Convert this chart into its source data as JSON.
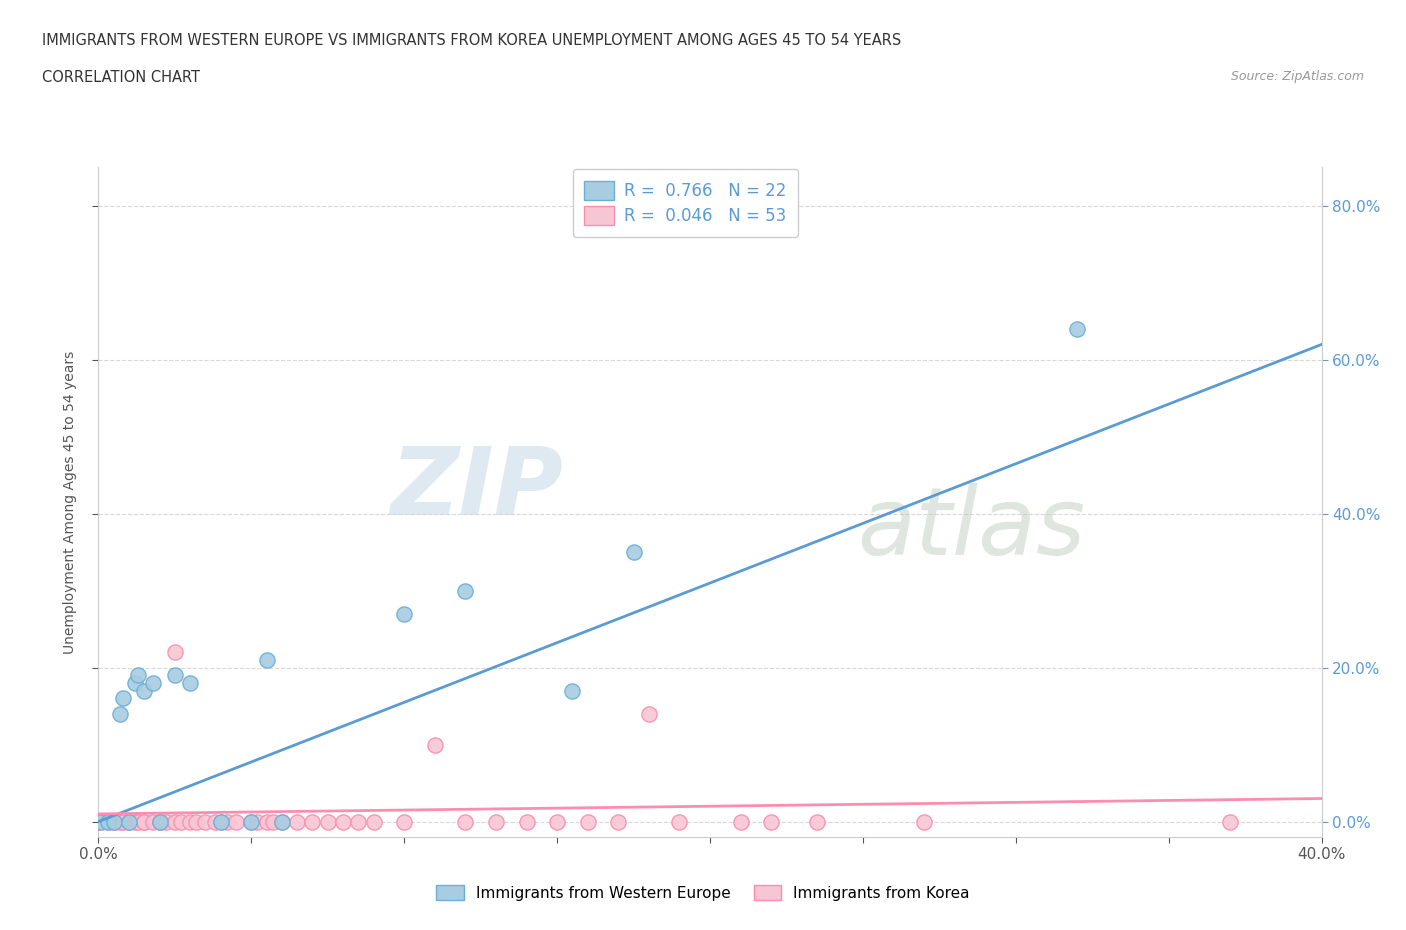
{
  "title_line1": "IMMIGRANTS FROM WESTERN EUROPE VS IMMIGRANTS FROM KOREA UNEMPLOYMENT AMONG AGES 45 TO 54 YEARS",
  "title_line2": "CORRELATION CHART",
  "source_text": "Source: ZipAtlas.com",
  "ylabel": "Unemployment Among Ages 45 to 54 years",
  "xlim": [
    0.0,
    0.4
  ],
  "ylim": [
    -0.02,
    0.85
  ],
  "x_ticks": [
    0.0,
    0.05,
    0.1,
    0.15,
    0.2,
    0.25,
    0.3,
    0.35,
    0.4
  ],
  "x_tick_labels": [
    "0.0%",
    "",
    "",
    "",
    "",
    "",
    "",
    "",
    "40.0%"
  ],
  "y_ticks": [
    0.0,
    0.2,
    0.4,
    0.6,
    0.8
  ],
  "y_tick_labels_right": [
    "0.0%",
    "20.0%",
    "40.0%",
    "60.0%",
    "80.0%"
  ],
  "watermark_zip": "ZIP",
  "watermark_atlas": "atlas",
  "legend_r1": "R =  0.766",
  "legend_n1": "N = 22",
  "legend_r2": "R =  0.046",
  "legend_n2": "N = 53",
  "blue_color": "#a8cce0",
  "blue_edge_color": "#6baed6",
  "pink_color": "#f7c6d4",
  "pink_edge_color": "#fb8db0",
  "blue_line_color": "#5b9bd5",
  "pink_line_color": "#e8789c",
  "blue_scatter_x": [
    0.001,
    0.003,
    0.005,
    0.007,
    0.008,
    0.01,
    0.012,
    0.013,
    0.015,
    0.018,
    0.02,
    0.025,
    0.03,
    0.04,
    0.05,
    0.055,
    0.06,
    0.1,
    0.12,
    0.155,
    0.175,
    0.32
  ],
  "blue_scatter_y": [
    0.0,
    0.0,
    0.0,
    0.14,
    0.16,
    0.0,
    0.18,
    0.19,
    0.17,
    0.18,
    0.0,
    0.19,
    0.18,
    0.0,
    0.0,
    0.21,
    0.0,
    0.27,
    0.3,
    0.17,
    0.35,
    0.64
  ],
  "pink_scatter_x": [
    0.0,
    0.0,
    0.003,
    0.005,
    0.005,
    0.007,
    0.008,
    0.01,
    0.01,
    0.012,
    0.013,
    0.015,
    0.015,
    0.018,
    0.02,
    0.02,
    0.022,
    0.025,
    0.025,
    0.027,
    0.03,
    0.032,
    0.035,
    0.038,
    0.04,
    0.042,
    0.045,
    0.05,
    0.052,
    0.055,
    0.057,
    0.06,
    0.065,
    0.07,
    0.075,
    0.08,
    0.085,
    0.09,
    0.1,
    0.11,
    0.12,
    0.13,
    0.14,
    0.15,
    0.16,
    0.17,
    0.18,
    0.19,
    0.21,
    0.22,
    0.235,
    0.27,
    0.37
  ],
  "pink_scatter_y": [
    0.0,
    0.0,
    0.0,
    0.0,
    0.0,
    0.0,
    0.0,
    0.0,
    0.0,
    0.0,
    0.0,
    0.0,
    0.0,
    0.0,
    0.0,
    0.0,
    0.0,
    0.22,
    0.0,
    0.0,
    0.0,
    0.0,
    0.0,
    0.0,
    0.0,
    0.0,
    0.0,
    0.0,
    0.0,
    0.0,
    0.0,
    0.0,
    0.0,
    0.0,
    0.0,
    0.0,
    0.0,
    0.0,
    0.0,
    0.1,
    0.0,
    0.0,
    0.0,
    0.0,
    0.0,
    0.0,
    0.14,
    0.0,
    0.0,
    0.0,
    0.0,
    0.0,
    0.0
  ],
  "blue_trend_x": [
    0.0,
    0.4
  ],
  "blue_trend_y": [
    0.0,
    0.62
  ],
  "pink_trend_x": [
    0.0,
    0.4
  ],
  "pink_trend_y": [
    0.01,
    0.03
  ],
  "grid_color": "#d8d8d8",
  "background_color": "#ffffff",
  "scatter_size": 120
}
